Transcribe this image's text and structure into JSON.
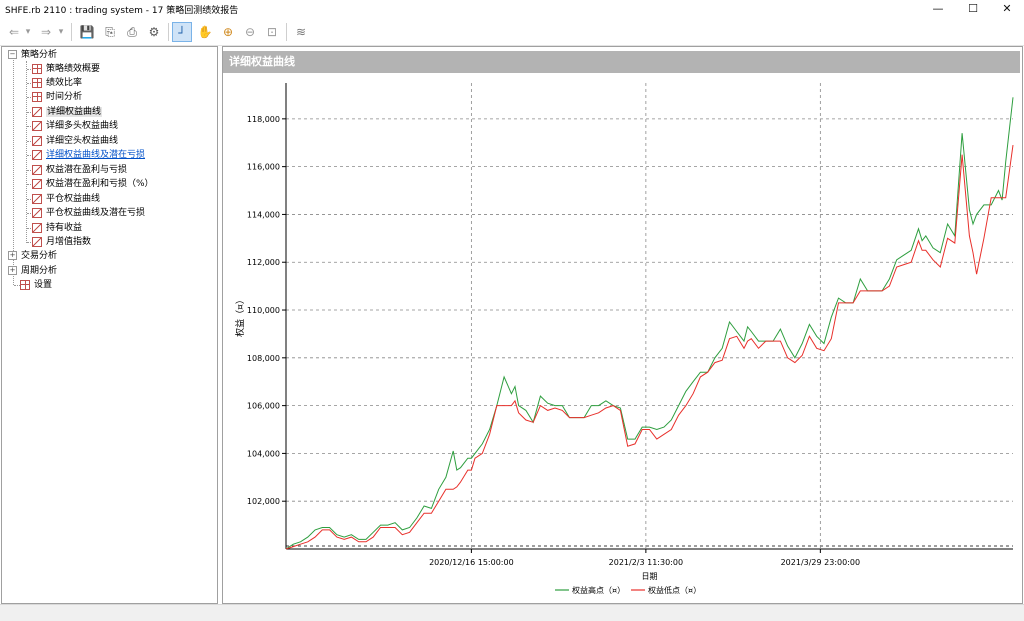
{
  "window": {
    "title": "SHFE.rb 2110 : trading system - 17 策略回测绩效报告",
    "minimize_glyph": "—",
    "maximize_glyph": "☐",
    "close_glyph": "✕"
  },
  "toolbar": {
    "icons": [
      "back-arrow-icon",
      "dropdown-icon",
      "forward-arrow-icon",
      "dropdown-icon",
      "save-icon",
      "open-icon",
      "print-icon",
      "settings-gear-icon",
      "crosshair-icon",
      "hand-pan-icon",
      "zoom-in-icon",
      "zoom-out-icon",
      "fit-icon",
      "wave-icon"
    ],
    "glyphs": {
      "back": "⇐",
      "drop": "▾",
      "forward": "⇒",
      "save": "💾",
      "open": "⎘",
      "print": "⎙",
      "gear": "⚙",
      "cross": "┘",
      "hand": "✋",
      "zoomin": "⊕",
      "zoomout": "⊖",
      "fit": "⊡",
      "wave": "≋"
    }
  },
  "tree": {
    "root1": "策略分析",
    "items": [
      "策略绩效概要",
      "绩效比率",
      "时间分析",
      "详细权益曲线",
      "详细多头权益曲线",
      "详细空头权益曲线",
      "详细权益曲线及潜在亏损",
      "权益潜在盈利与亏损",
      "权益潜在盈利和亏损（%）",
      "平仓权益曲线",
      "平仓权益曲线及潜在亏损",
      "持有收益",
      "月增值指数"
    ],
    "root2": "交易分析",
    "root3": "周期分析",
    "root4": "设置",
    "expander_open": "−",
    "expander_closed": "+"
  },
  "panel": {
    "title": "详细权益曲线"
  },
  "colors": {
    "high": "#2e9e3f",
    "low": "#e8302b",
    "grid": "#888888",
    "accent": "#0050c8"
  },
  "chart_data": {
    "type": "line",
    "ylabel": "权益（¤）",
    "xlabel": "日期",
    "ylim": [
      100000,
      119500
    ],
    "yticks": [
      "102,000",
      "104,000",
      "106,000",
      "108,000",
      "110,000",
      "112,000",
      "114,000",
      "116,000",
      "118,000"
    ],
    "ytick_values": [
      102000,
      104000,
      106000,
      108000,
      110000,
      112000,
      114000,
      116000,
      118000
    ],
    "xticks": [
      "2020/12/16 15:00:00",
      "2021/2/3 11:30:00",
      "2021/3/29 23:00:00"
    ],
    "xtick_positions": [
      0.255,
      0.495,
      0.735
    ],
    "legend": [
      "权益高点（¤）",
      "权益低点（¤）"
    ],
    "legend_position": "bottom-center",
    "series": [
      {
        "name": "权益高点（¤）",
        "points": [
          [
            0,
            100000
          ],
          [
            0.01,
            100200
          ],
          [
            0.02,
            100300
          ],
          [
            0.03,
            100500
          ],
          [
            0.04,
            100800
          ],
          [
            0.05,
            100900
          ],
          [
            0.06,
            100900
          ],
          [
            0.07,
            100600
          ],
          [
            0.08,
            100500
          ],
          [
            0.09,
            100600
          ],
          [
            0.1,
            100400
          ],
          [
            0.11,
            100400
          ],
          [
            0.12,
            100700
          ],
          [
            0.13,
            101000
          ],
          [
            0.14,
            101000
          ],
          [
            0.15,
            101100
          ],
          [
            0.16,
            100800
          ],
          [
            0.17,
            100900
          ],
          [
            0.18,
            101300
          ],
          [
            0.19,
            101800
          ],
          [
            0.2,
            101700
          ],
          [
            0.21,
            102500
          ],
          [
            0.22,
            103000
          ],
          [
            0.23,
            104100
          ],
          [
            0.235,
            103300
          ],
          [
            0.24,
            103400
          ],
          [
            0.25,
            103800
          ],
          [
            0.255,
            103800
          ],
          [
            0.26,
            104000
          ],
          [
            0.27,
            104400
          ],
          [
            0.28,
            105000
          ],
          [
            0.29,
            106000
          ],
          [
            0.3,
            107200
          ],
          [
            0.31,
            106500
          ],
          [
            0.315,
            106800
          ],
          [
            0.32,
            106000
          ],
          [
            0.33,
            105800
          ],
          [
            0.34,
            105300
          ],
          [
            0.35,
            106400
          ],
          [
            0.36,
            106100
          ],
          [
            0.37,
            106000
          ],
          [
            0.38,
            106000
          ],
          [
            0.39,
            105500
          ],
          [
            0.4,
            105500
          ],
          [
            0.41,
            105500
          ],
          [
            0.42,
            106000
          ],
          [
            0.43,
            106000
          ],
          [
            0.44,
            106200
          ],
          [
            0.45,
            106000
          ],
          [
            0.46,
            105900
          ],
          [
            0.47,
            104600
          ],
          [
            0.48,
            104600
          ],
          [
            0.49,
            105100
          ],
          [
            0.5,
            105100
          ],
          [
            0.51,
            105000
          ],
          [
            0.52,
            105100
          ],
          [
            0.53,
            105400
          ],
          [
            0.54,
            106000
          ],
          [
            0.55,
            106600
          ],
          [
            0.56,
            107000
          ],
          [
            0.57,
            107400
          ],
          [
            0.58,
            107400
          ],
          [
            0.59,
            108000
          ],
          [
            0.6,
            108400
          ],
          [
            0.61,
            109500
          ],
          [
            0.62,
            109100
          ],
          [
            0.63,
            108700
          ],
          [
            0.635,
            109300
          ],
          [
            0.64,
            109100
          ],
          [
            0.65,
            108700
          ],
          [
            0.66,
            108700
          ],
          [
            0.67,
            108700
          ],
          [
            0.68,
            109200
          ],
          [
            0.69,
            108500
          ],
          [
            0.7,
            108000
          ],
          [
            0.71,
            108600
          ],
          [
            0.72,
            109400
          ],
          [
            0.73,
            108900
          ],
          [
            0.74,
            108600
          ],
          [
            0.75,
            109700
          ],
          [
            0.76,
            110500
          ],
          [
            0.77,
            110300
          ],
          [
            0.78,
            110300
          ],
          [
            0.79,
            111300
          ],
          [
            0.8,
            110800
          ],
          [
            0.81,
            110800
          ],
          [
            0.82,
            110800
          ],
          [
            0.83,
            111300
          ],
          [
            0.84,
            112100
          ],
          [
            0.85,
            112300
          ],
          [
            0.86,
            112500
          ],
          [
            0.87,
            113400
          ],
          [
            0.875,
            112900
          ],
          [
            0.88,
            113100
          ],
          [
            0.89,
            112600
          ],
          [
            0.9,
            112400
          ],
          [
            0.91,
            113600
          ],
          [
            0.92,
            113100
          ],
          [
            0.93,
            117400
          ],
          [
            0.94,
            114200
          ],
          [
            0.945,
            113600
          ],
          [
            0.95,
            114000
          ],
          [
            0.96,
            114400
          ],
          [
            0.97,
            114400
          ],
          [
            0.98,
            115000
          ],
          [
            0.985,
            114600
          ],
          [
            0.99,
            116200
          ],
          [
            1.0,
            118900
          ]
        ]
      },
      {
        "name": "权益低点（¤）",
        "points": [
          [
            0,
            100000
          ],
          [
            0.01,
            100100
          ],
          [
            0.02,
            100200
          ],
          [
            0.03,
            100300
          ],
          [
            0.04,
            100500
          ],
          [
            0.05,
            100800
          ],
          [
            0.06,
            100800
          ],
          [
            0.07,
            100500
          ],
          [
            0.08,
            100400
          ],
          [
            0.09,
            100500
          ],
          [
            0.1,
            100300
          ],
          [
            0.11,
            100300
          ],
          [
            0.12,
            100500
          ],
          [
            0.13,
            100900
          ],
          [
            0.14,
            100900
          ],
          [
            0.15,
            100900
          ],
          [
            0.16,
            100600
          ],
          [
            0.17,
            100700
          ],
          [
            0.18,
            101100
          ],
          [
            0.19,
            101500
          ],
          [
            0.2,
            101500
          ],
          [
            0.21,
            102000
          ],
          [
            0.22,
            102500
          ],
          [
            0.23,
            102500
          ],
          [
            0.235,
            102600
          ],
          [
            0.24,
            102800
          ],
          [
            0.25,
            103300
          ],
          [
            0.255,
            103300
          ],
          [
            0.26,
            103800
          ],
          [
            0.27,
            104000
          ],
          [
            0.28,
            104800
          ],
          [
            0.29,
            106000
          ],
          [
            0.3,
            106000
          ],
          [
            0.31,
            106000
          ],
          [
            0.315,
            106200
          ],
          [
            0.32,
            105700
          ],
          [
            0.33,
            105400
          ],
          [
            0.34,
            105300
          ],
          [
            0.35,
            106000
          ],
          [
            0.36,
            105800
          ],
          [
            0.37,
            105900
          ],
          [
            0.38,
            105800
          ],
          [
            0.39,
            105500
          ],
          [
            0.4,
            105500
          ],
          [
            0.41,
            105500
          ],
          [
            0.42,
            105600
          ],
          [
            0.43,
            105700
          ],
          [
            0.44,
            105900
          ],
          [
            0.45,
            106000
          ],
          [
            0.46,
            105800
          ],
          [
            0.47,
            104300
          ],
          [
            0.48,
            104400
          ],
          [
            0.49,
            105000
          ],
          [
            0.5,
            105000
          ],
          [
            0.51,
            104600
          ],
          [
            0.52,
            104800
          ],
          [
            0.53,
            105000
          ],
          [
            0.54,
            105600
          ],
          [
            0.55,
            106000
          ],
          [
            0.56,
            106500
          ],
          [
            0.57,
            107200
          ],
          [
            0.58,
            107400
          ],
          [
            0.59,
            107800
          ],
          [
            0.6,
            107900
          ],
          [
            0.61,
            108800
          ],
          [
            0.62,
            108900
          ],
          [
            0.63,
            108400
          ],
          [
            0.635,
            108700
          ],
          [
            0.64,
            108800
          ],
          [
            0.65,
            108400
          ],
          [
            0.66,
            108700
          ],
          [
            0.67,
            108700
          ],
          [
            0.68,
            108700
          ],
          [
            0.69,
            108000
          ],
          [
            0.7,
            107800
          ],
          [
            0.71,
            108100
          ],
          [
            0.72,
            108900
          ],
          [
            0.73,
            108400
          ],
          [
            0.74,
            108300
          ],
          [
            0.75,
            108800
          ],
          [
            0.76,
            110300
          ],
          [
            0.77,
            110300
          ],
          [
            0.78,
            110300
          ],
          [
            0.79,
            110800
          ],
          [
            0.8,
            110800
          ],
          [
            0.81,
            110800
          ],
          [
            0.82,
            110800
          ],
          [
            0.83,
            111000
          ],
          [
            0.84,
            111800
          ],
          [
            0.85,
            111900
          ],
          [
            0.86,
            112000
          ],
          [
            0.87,
            112900
          ],
          [
            0.875,
            112500
          ],
          [
            0.88,
            112500
          ],
          [
            0.89,
            112100
          ],
          [
            0.9,
            111800
          ],
          [
            0.91,
            113000
          ],
          [
            0.92,
            112800
          ],
          [
            0.93,
            116500
          ],
          [
            0.94,
            113100
          ],
          [
            0.945,
            112400
          ],
          [
            0.95,
            111500
          ],
          [
            0.96,
            113000
          ],
          [
            0.97,
            114700
          ],
          [
            0.98,
            114700
          ],
          [
            0.985,
            114700
          ],
          [
            0.99,
            114700
          ],
          [
            1.0,
            116900
          ]
        ]
      }
    ]
  }
}
